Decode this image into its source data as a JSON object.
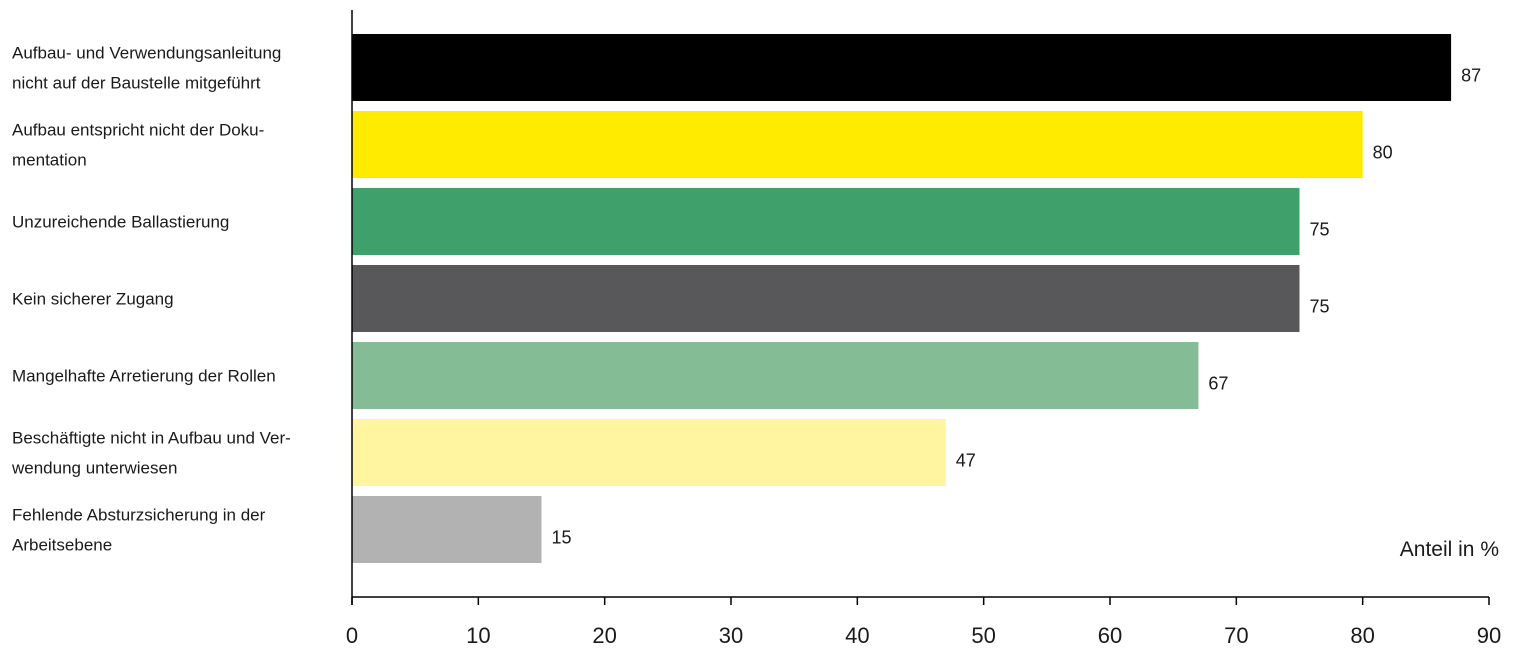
{
  "chart_data": {
    "type": "bar",
    "orientation": "horizontal",
    "categories": [
      [
        "Aufbau- und Verwendungsanleitung",
        "nicht auf der Baustelle mitgeführt"
      ],
      [
        "Aufbau entspricht nicht der Doku-",
        "mentation"
      ],
      [
        "Unzureichende Ballastierung"
      ],
      [
        "Kein sicherer Zugang"
      ],
      [
        "Mangelhafte Arretierung der Rollen"
      ],
      [
        "Beschäftigte nicht in Aufbau und Ver-",
        "wendung unterwiesen"
      ],
      [
        "Fehlende Absturzsicherung in der",
        "Arbeitsebene"
      ]
    ],
    "values": [
      87,
      80,
      75,
      75,
      67,
      47,
      15
    ],
    "value_labels": [
      "87",
      "80",
      "75",
      "75",
      "67",
      "47",
      "15"
    ],
    "colors": [
      "#000000",
      "#ffeb00",
      "#40a06c",
      "#58585a",
      "#84bd95",
      "#fff4a0",
      "#b2b2b2"
    ],
    "xlim": [
      0,
      90
    ],
    "ticks": [
      0,
      10,
      20,
      30,
      40,
      50,
      60,
      70,
      80,
      90
    ],
    "tick_labels": [
      "0",
      "10",
      "20",
      "30",
      "40",
      "50",
      "60",
      "70",
      "80",
      "90"
    ],
    "xlabel": "Anteil in %",
    "grid": false,
    "legend": "none"
  }
}
